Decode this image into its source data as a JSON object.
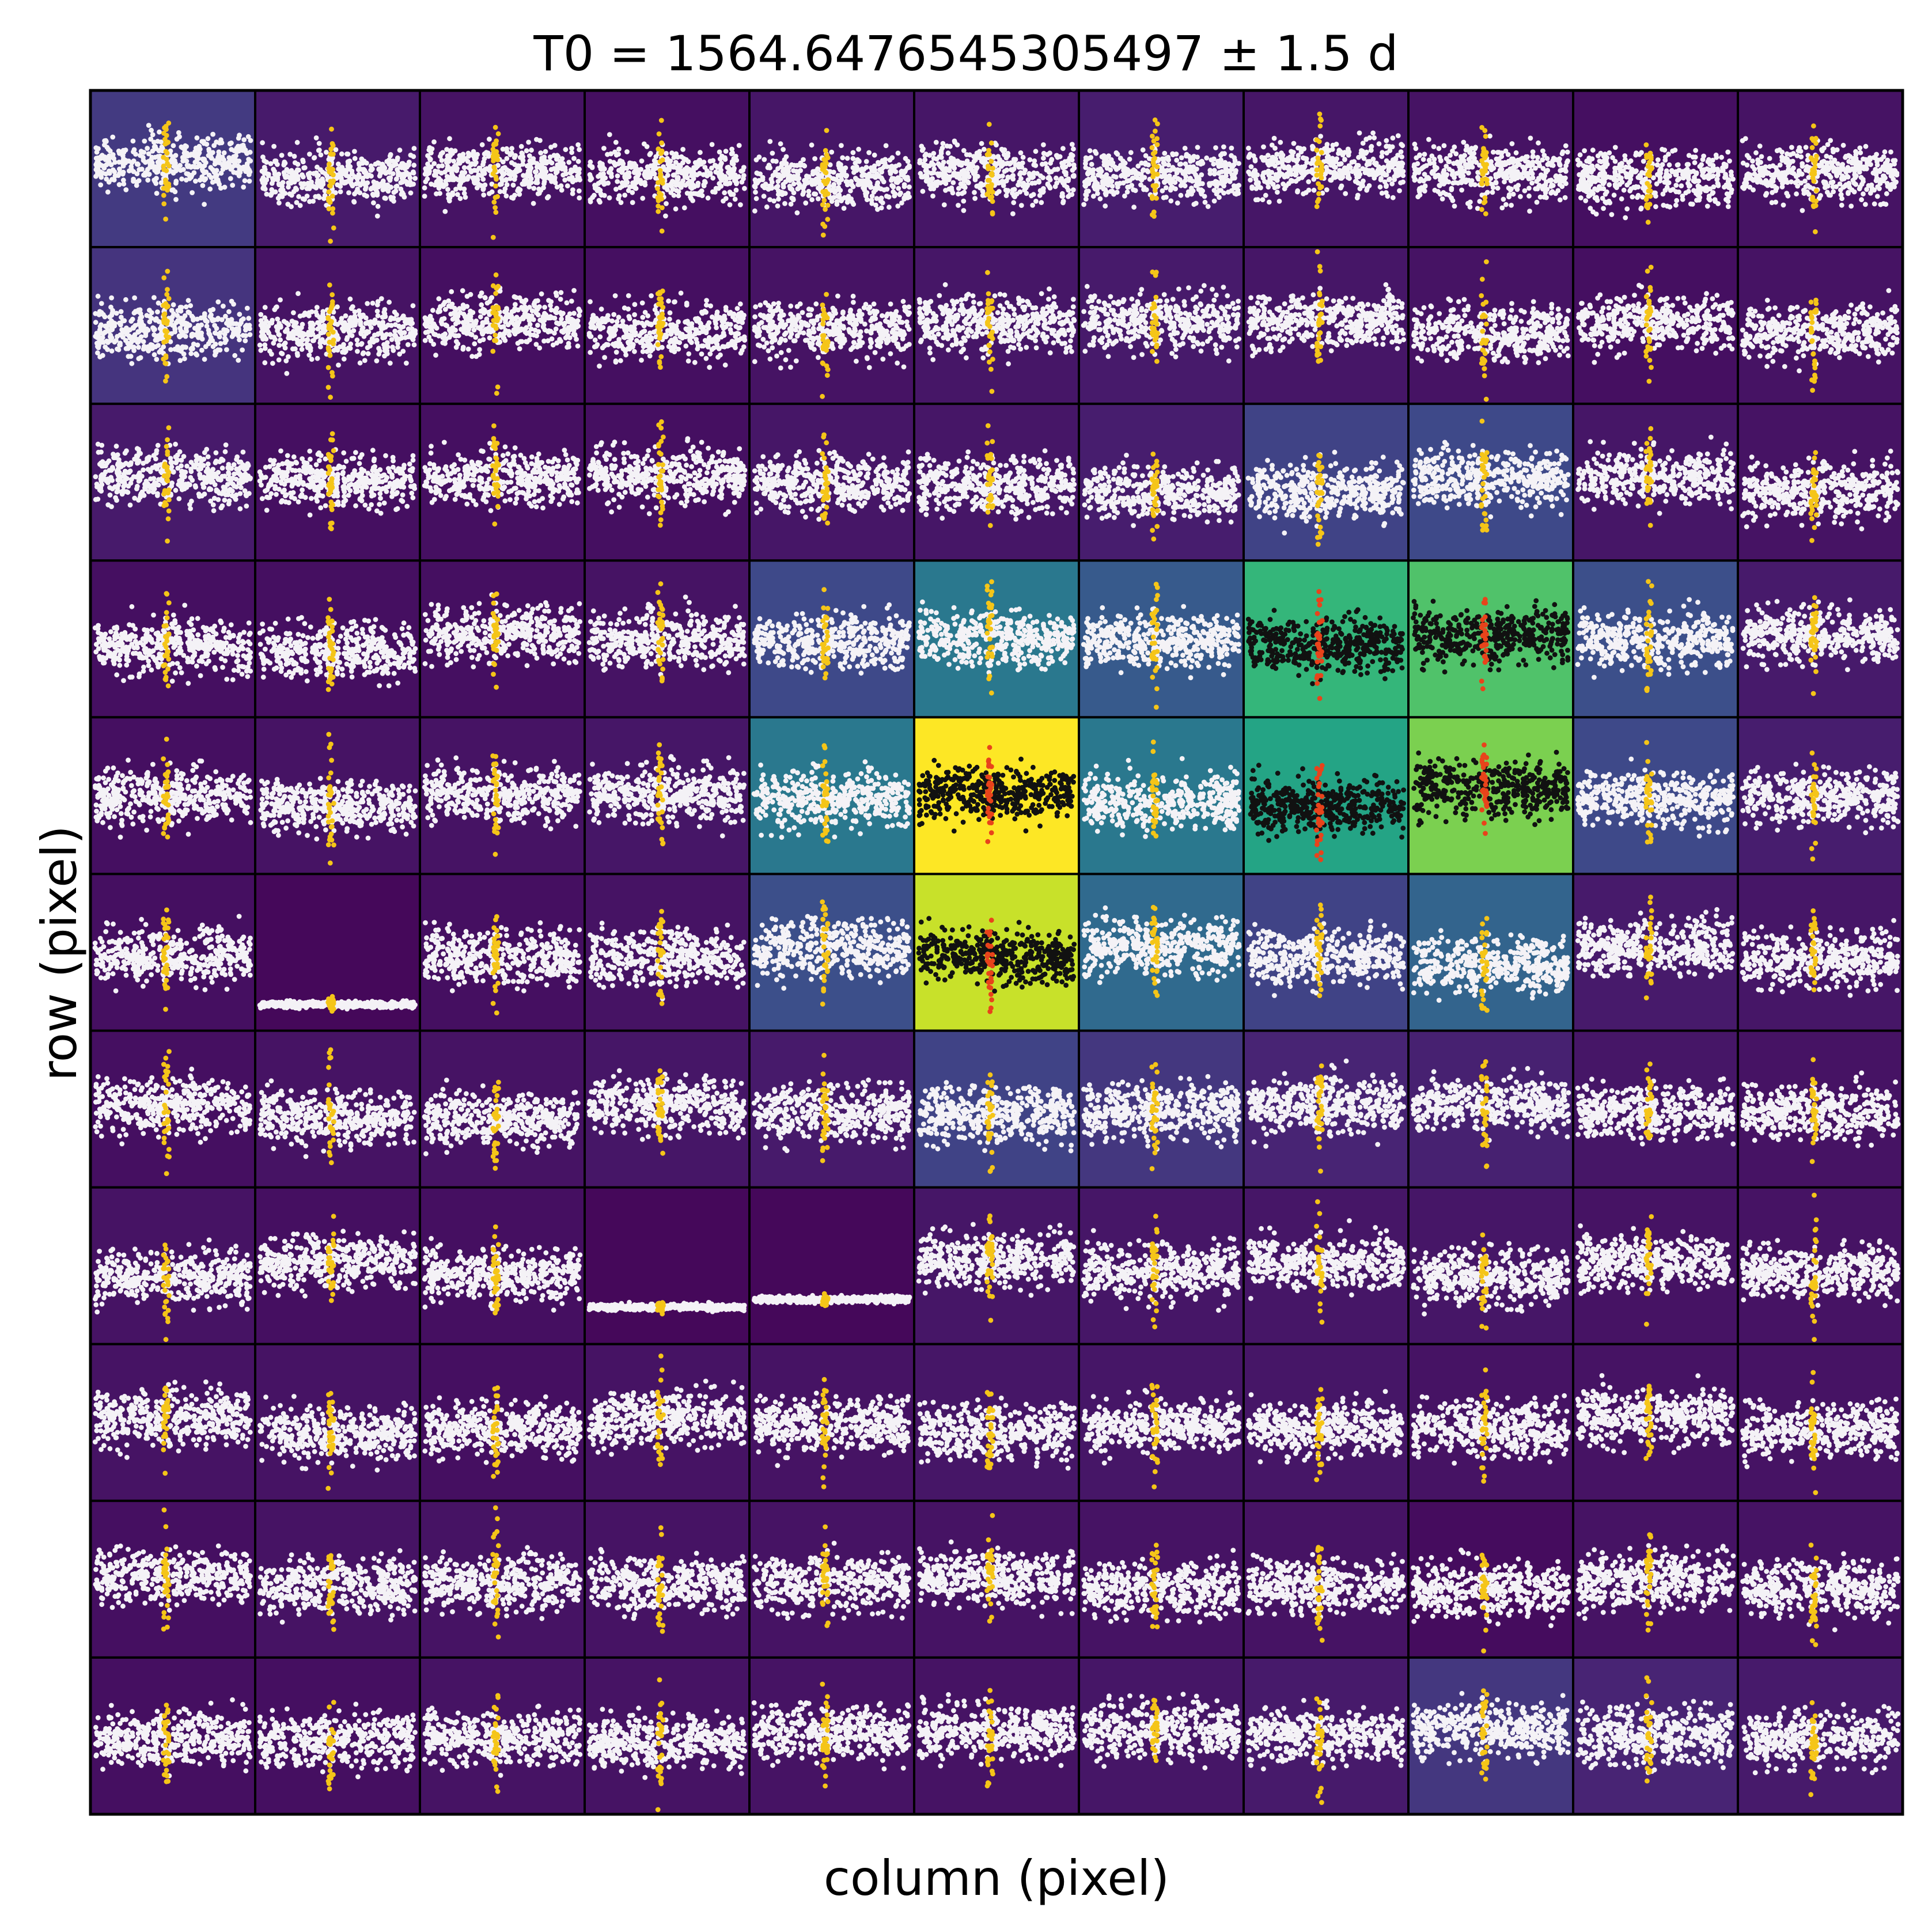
{
  "chart_data": {
    "type": "scatter",
    "title": "T0 = 1564.6476545305497 ± 1.5 d",
    "xlabel": "column (pixel)",
    "ylabel": "row (pixel)",
    "grid": false,
    "legend": "none",
    "n_rows": 11,
    "n_cols": 11,
    "colormap": "viridis",
    "colors": {
      "in_aperture_points": "#111111",
      "in_aperture_transit": "#e8431b",
      "background_points": "#f4f2f6",
      "background_transit": "#f5c518",
      "cell_border": "#000000"
    },
    "pixel_level": [
      [
        0.17,
        0.07,
        0.05,
        0.04,
        0.06,
        0.06,
        0.08,
        0.06,
        0.05,
        0.04,
        0.05
      ],
      [
        0.15,
        0.05,
        0.04,
        0.04,
        0.05,
        0.06,
        0.07,
        0.06,
        0.05,
        0.04,
        0.05
      ],
      [
        0.07,
        0.04,
        0.04,
        0.04,
        0.06,
        0.06,
        0.08,
        0.2,
        0.22,
        0.06,
        0.05
      ],
      [
        0.04,
        0.04,
        0.04,
        0.05,
        0.22,
        0.4,
        0.28,
        0.66,
        0.72,
        0.24,
        0.07
      ],
      [
        0.04,
        0.05,
        0.05,
        0.06,
        0.4,
        1.0,
        0.4,
        0.58,
        0.8,
        0.22,
        0.08
      ],
      [
        0.04,
        0.02,
        0.04,
        0.05,
        0.24,
        0.92,
        0.34,
        0.2,
        0.32,
        0.07,
        0.06
      ],
      [
        0.04,
        0.05,
        0.05,
        0.06,
        0.07,
        0.2,
        0.16,
        0.1,
        0.09,
        0.06,
        0.05
      ],
      [
        0.05,
        0.04,
        0.04,
        0.02,
        0.02,
        0.06,
        0.06,
        0.06,
        0.06,
        0.05,
        0.05
      ],
      [
        0.05,
        0.05,
        0.04,
        0.05,
        0.05,
        0.06,
        0.06,
        0.06,
        0.05,
        0.05,
        0.05
      ],
      [
        0.04,
        0.05,
        0.05,
        0.05,
        0.05,
        0.05,
        0.05,
        0.05,
        0.03,
        0.05,
        0.05
      ],
      [
        0.04,
        0.04,
        0.05,
        0.05,
        0.05,
        0.05,
        0.06,
        0.07,
        0.16,
        0.1,
        0.07
      ]
    ],
    "in_aperture": [
      [
        3,
        7
      ],
      [
        3,
        8
      ],
      [
        4,
        5
      ],
      [
        4,
        7
      ],
      [
        4,
        8
      ],
      [
        5,
        5
      ]
    ],
    "low_variance_cells": [
      [
        5,
        1
      ],
      [
        7,
        3
      ],
      [
        7,
        4
      ]
    ],
    "light_curve_model": {
      "points_per_cell": 420,
      "transit_points_per_cell": 30,
      "transit_phase": 0.46,
      "baseline": 0.52,
      "scatter": 0.17
    }
  }
}
